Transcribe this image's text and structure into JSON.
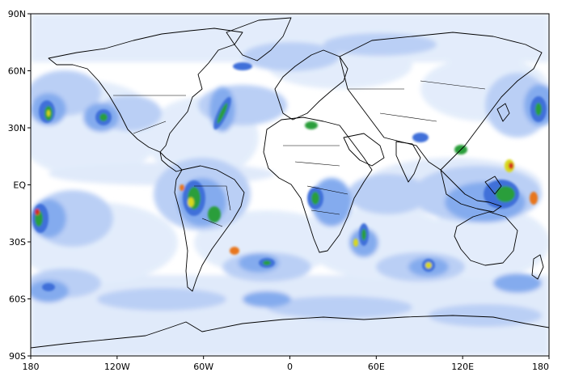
{
  "map": {
    "projection": "cylindrical-equidistant",
    "lon_range": [
      -180,
      180
    ],
    "lat_range": [
      -90,
      90
    ],
    "background_color": "#ffffff",
    "coastline_color": "#000000",
    "field_colors": [
      "#e2ecfb",
      "#b7cdf5",
      "#7ea7ee",
      "#3f6fd9",
      "#2b9e3a",
      "#d8d81e",
      "#e8761c",
      "#d42a1a"
    ],
    "lat_ticks": [
      {
        "value": 90,
        "label": "90N"
      },
      {
        "value": 60,
        "label": "60N"
      },
      {
        "value": 30,
        "label": "30N"
      },
      {
        "value": 0,
        "label": "EQ"
      },
      {
        "value": -30,
        "label": "30S"
      },
      {
        "value": -60,
        "label": "60S"
      },
      {
        "value": -90,
        "label": "90S"
      }
    ],
    "lon_ticks": [
      {
        "value": -180,
        "label": "180"
      },
      {
        "value": -120,
        "label": "120W"
      },
      {
        "value": -60,
        "label": "60W"
      },
      {
        "value": 0,
        "label": "0"
      },
      {
        "value": 60,
        "label": "60E"
      },
      {
        "value": 120,
        "label": "120E"
      },
      {
        "value": 180,
        "label": "180"
      }
    ]
  }
}
